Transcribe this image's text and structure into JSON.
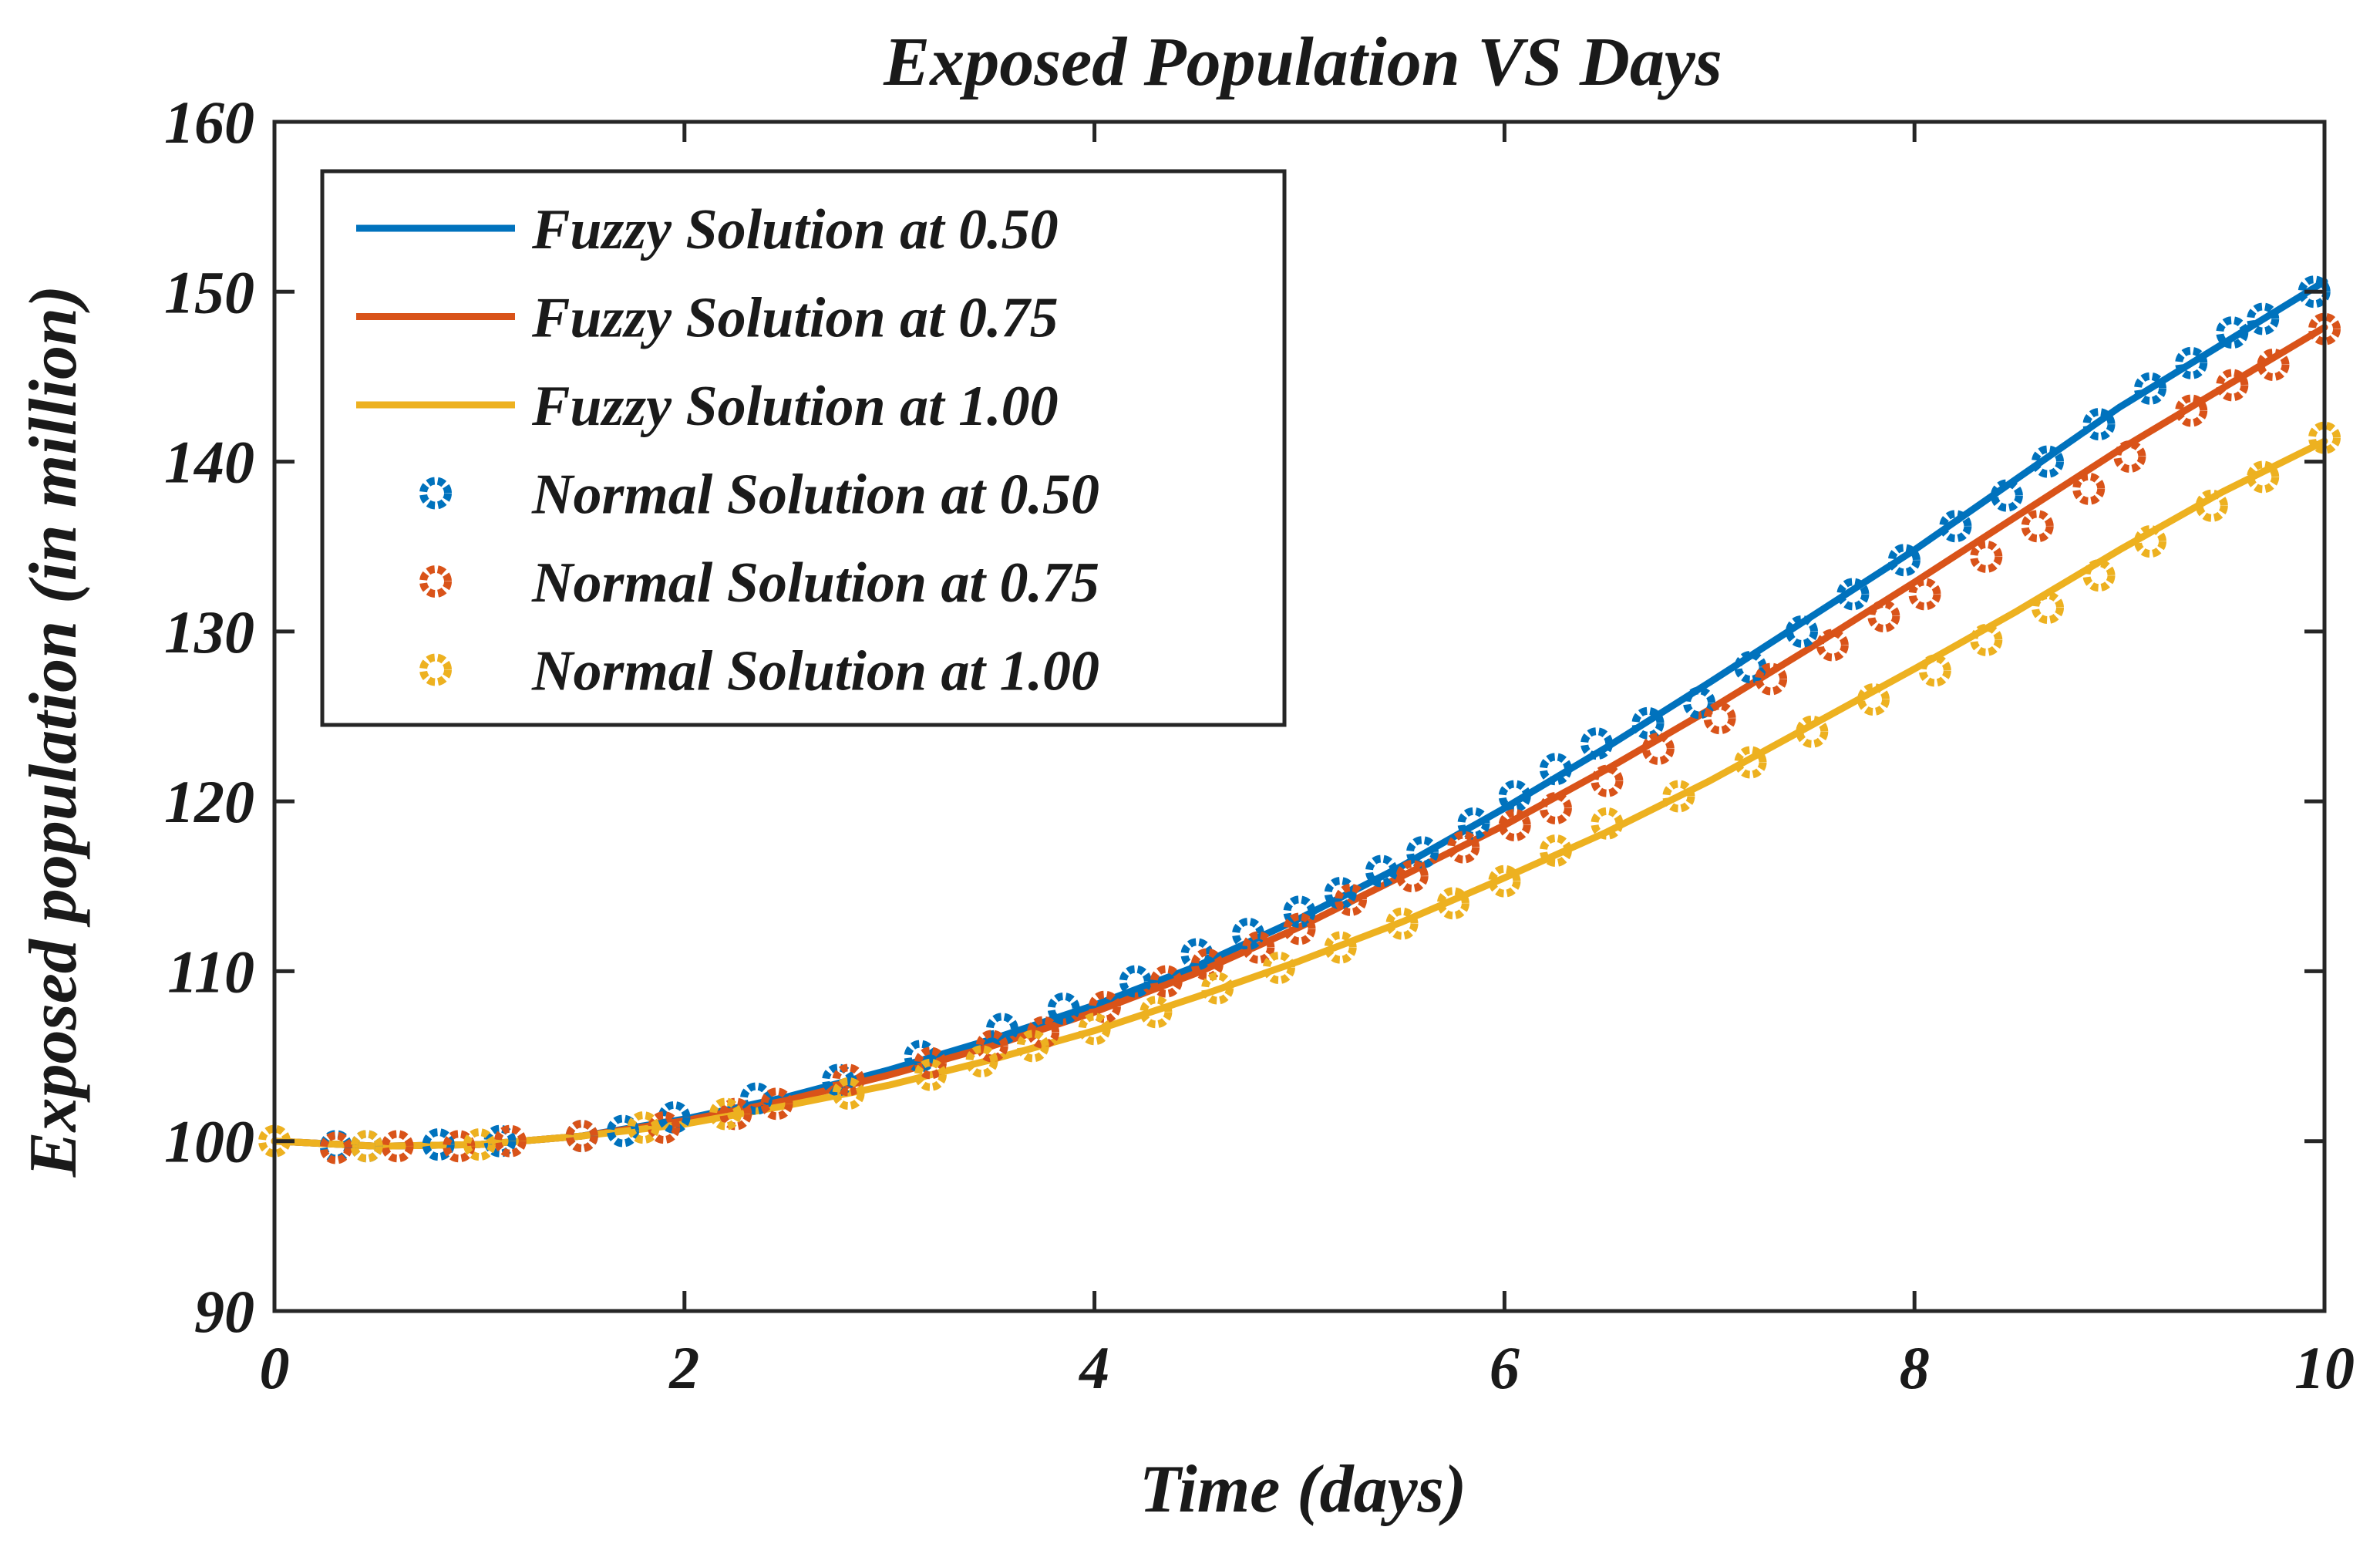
{
  "chart_data": {
    "type": "line",
    "title": "Exposed Population VS Days",
    "xlabel": "Time (days)",
    "ylabel": "Exposed population (in million)",
    "xlim": [
      0,
      10
    ],
    "ylim": [
      90,
      160
    ],
    "xticks": [
      "0",
      "2",
      "4",
      "6",
      "8",
      "10"
    ],
    "yticks": [
      "90",
      "100",
      "110",
      "120",
      "130",
      "140",
      "150",
      "160"
    ],
    "grid": false,
    "legend_position": "upper-left",
    "legend": [
      "Fuzzy Solution at 0.50",
      "Fuzzy Solution at 0.75",
      "Fuzzy Solution at 1.00",
      "Normal Solution at 0.50",
      "Normal Solution at 0.75",
      "Normal Solution at 1.00"
    ],
    "series": [
      {
        "name": "Fuzzy Solution at 0.50",
        "style": "line",
        "color": "#0072BD",
        "x": [
          0,
          0.5,
          1,
          1.5,
          2,
          2.5,
          3,
          3.5,
          4,
          4.5,
          5,
          5.5,
          6,
          6.5,
          7,
          7.5,
          8,
          8.5,
          9,
          9.5,
          10
        ],
        "y": [
          100,
          99.7,
          99.8,
          100.3,
          101.3,
          102.6,
          104.2,
          106.0,
          108.0,
          110.3,
          113.1,
          116.2,
          119.6,
          123.2,
          127.0,
          130.9,
          134.8,
          139.0,
          143.2,
          146.9,
          150.6
        ]
      },
      {
        "name": "Fuzzy Solution at 0.75",
        "style": "line",
        "color": "#D95319",
        "x": [
          0,
          0.5,
          1,
          1.5,
          2,
          2.5,
          3,
          3.5,
          4,
          4.5,
          5,
          5.5,
          6,
          6.5,
          7,
          7.5,
          8,
          8.5,
          9,
          9.5,
          10
        ],
        "y": [
          100,
          99.7,
          99.8,
          100.3,
          101.2,
          102.4,
          103.9,
          105.6,
          107.6,
          109.9,
          112.6,
          115.6,
          118.6,
          121.9,
          125.4,
          129.1,
          132.9,
          136.8,
          140.7,
          144.3,
          147.9
        ]
      },
      {
        "name": "Fuzzy Solution at 1.00",
        "style": "line",
        "color": "#EDB120",
        "x": [
          0,
          0.5,
          1,
          1.5,
          2,
          2.5,
          3,
          3.5,
          4,
          4.5,
          5,
          5.5,
          6,
          6.5,
          7,
          7.5,
          8,
          8.5,
          9,
          9.5,
          10
        ],
        "y": [
          100,
          99.7,
          99.8,
          100.3,
          101.0,
          102.1,
          103.3,
          104.8,
          106.5,
          108.5,
          110.6,
          112.9,
          115.5,
          118.2,
          121.2,
          124.5,
          127.8,
          131.2,
          134.8,
          138.2,
          141.2
        ]
      },
      {
        "name": "Normal Solution at 0.50",
        "style": "markers",
        "color": "#0072BD",
        "x": [
          0.3,
          0.45,
          0.8,
          1.1,
          1.5,
          1.7,
          1.95,
          2.35,
          2.75,
          3.15,
          3.55,
          3.85,
          4.2,
          4.5,
          4.75,
          5.0,
          5.2,
          5.4,
          5.6,
          5.85,
          6.05,
          6.25,
          6.45,
          6.7,
          6.95,
          7.2,
          7.45,
          7.7,
          7.95,
          8.2,
          8.45,
          8.65,
          8.9,
          9.15,
          9.35,
          9.55,
          9.7,
          9.95
        ],
        "y": [
          99.7,
          99.7,
          99.8,
          100.0,
          100.3,
          100.6,
          101.4,
          102.5,
          103.6,
          105.0,
          106.6,
          107.8,
          109.4,
          111.0,
          112.2,
          113.5,
          114.6,
          115.9,
          117.0,
          118.7,
          120.3,
          121.9,
          123.4,
          124.6,
          125.8,
          127.9,
          130.0,
          132.2,
          134.2,
          136.2,
          138.0,
          140.0,
          142.2,
          144.3,
          145.8,
          147.6,
          148.4,
          150.0
        ]
      },
      {
        "name": "Normal Solution at 0.75",
        "style": "markers",
        "color": "#D95319",
        "x": [
          0.3,
          0.6,
          0.9,
          1.15,
          1.5,
          1.9,
          2.25,
          2.45,
          2.8,
          3.2,
          3.5,
          3.75,
          4.05,
          4.35,
          4.55,
          4.8,
          5.0,
          5.25,
          5.55,
          5.8,
          6.05,
          6.25,
          6.5,
          6.75,
          7.05,
          7.3,
          7.6,
          7.85,
          8.05,
          8.35,
          8.6,
          8.85,
          9.05,
          9.35,
          9.55,
          9.75,
          10.0
        ],
        "y": [
          99.6,
          99.7,
          99.7,
          100.0,
          100.3,
          100.8,
          101.6,
          102.2,
          103.6,
          104.6,
          105.6,
          106.4,
          107.9,
          109.4,
          110.4,
          111.4,
          112.5,
          114.2,
          115.6,
          117.3,
          118.6,
          119.6,
          121.2,
          123.1,
          124.9,
          127.2,
          129.2,
          130.9,
          132.2,
          134.4,
          136.2,
          138.4,
          140.3,
          143.0,
          144.5,
          145.7,
          147.8
        ]
      },
      {
        "name": "Normal Solution at 1.00",
        "style": "markers",
        "color": "#EDB120",
        "x": [
          0.0,
          0.45,
          1.0,
          1.8,
          2.2,
          2.8,
          3.2,
          3.45,
          3.7,
          4.0,
          4.3,
          4.6,
          4.9,
          5.2,
          5.5,
          5.75,
          6.0,
          6.25,
          6.5,
          6.85,
          7.2,
          7.5,
          7.8,
          8.1,
          8.35,
          8.65,
          8.9,
          9.15,
          9.45,
          9.7,
          10.0
        ],
        "y": [
          100.0,
          99.7,
          99.8,
          100.8,
          101.6,
          102.8,
          103.9,
          104.7,
          105.6,
          106.6,
          107.6,
          109.0,
          110.2,
          111.4,
          112.8,
          114.0,
          115.3,
          117.1,
          118.7,
          120.3,
          122.3,
          124.1,
          126.0,
          127.7,
          129.5,
          131.4,
          133.3,
          135.3,
          137.4,
          139.1,
          141.4
        ]
      }
    ]
  }
}
